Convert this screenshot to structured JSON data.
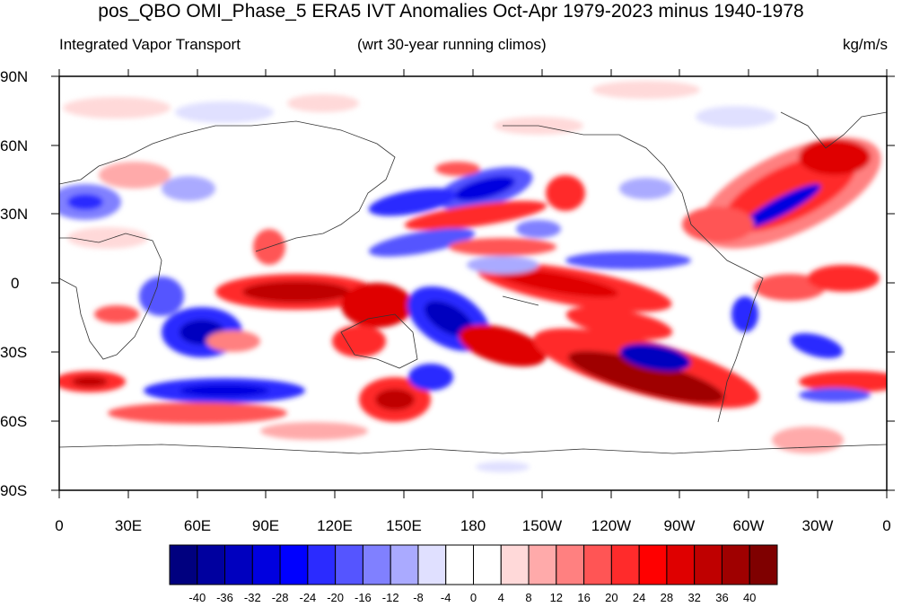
{
  "header": {
    "title": "pos_QBO OMI_Phase_5 ERA5 IVT Anomalies Oct-Apr 1979-2023 minus 1940-1978",
    "left_label": "Integrated Vapor Transport",
    "center_label": "(wrt 30-year running climos)",
    "right_label": "kg/m/s"
  },
  "map": {
    "lat_labels": [
      "90N",
      "60N",
      "30N",
      "0",
      "30S",
      "60S",
      "90S"
    ],
    "lon_labels": [
      "0",
      "30E",
      "60E",
      "90E",
      "120E",
      "150E",
      "180",
      "150W",
      "120W",
      "90W",
      "60W",
      "30W",
      "0"
    ]
  },
  "colorbar": {
    "labels": [
      "-40",
      "-36",
      "-32",
      "-28",
      "-24",
      "-20",
      "-16",
      "-12",
      "-8",
      "-4",
      "0",
      "4",
      "8",
      "12",
      "16",
      "20",
      "24",
      "28",
      "32",
      "36",
      "40"
    ],
    "colors": [
      "#00007f",
      "#00009f",
      "#0000bf",
      "#0000df",
      "#0000ff",
      "#2b2bff",
      "#5555ff",
      "#8080ff",
      "#aaaaff",
      "#e0e0ff",
      "#ffffff",
      "#ffffff",
      "#ffd9d9",
      "#ffaaaa",
      "#ff8080",
      "#ff5555",
      "#ff2b2b",
      "#ff0000",
      "#df0000",
      "#bf0000",
      "#9f0000",
      "#7f0000"
    ]
  },
  "chart_data": {
    "type": "heatmap",
    "variable": "IVT anomaly",
    "units": "kg/m/s",
    "levels": [
      -40,
      -36,
      -32,
      -28,
      -24,
      -20,
      -16,
      -12,
      -8,
      -4,
      0,
      4,
      8,
      12,
      16,
      20,
      24,
      28,
      32,
      36,
      40
    ],
    "lon_range": [
      0,
      360
    ],
    "lat_range": [
      -90,
      90
    ]
  }
}
